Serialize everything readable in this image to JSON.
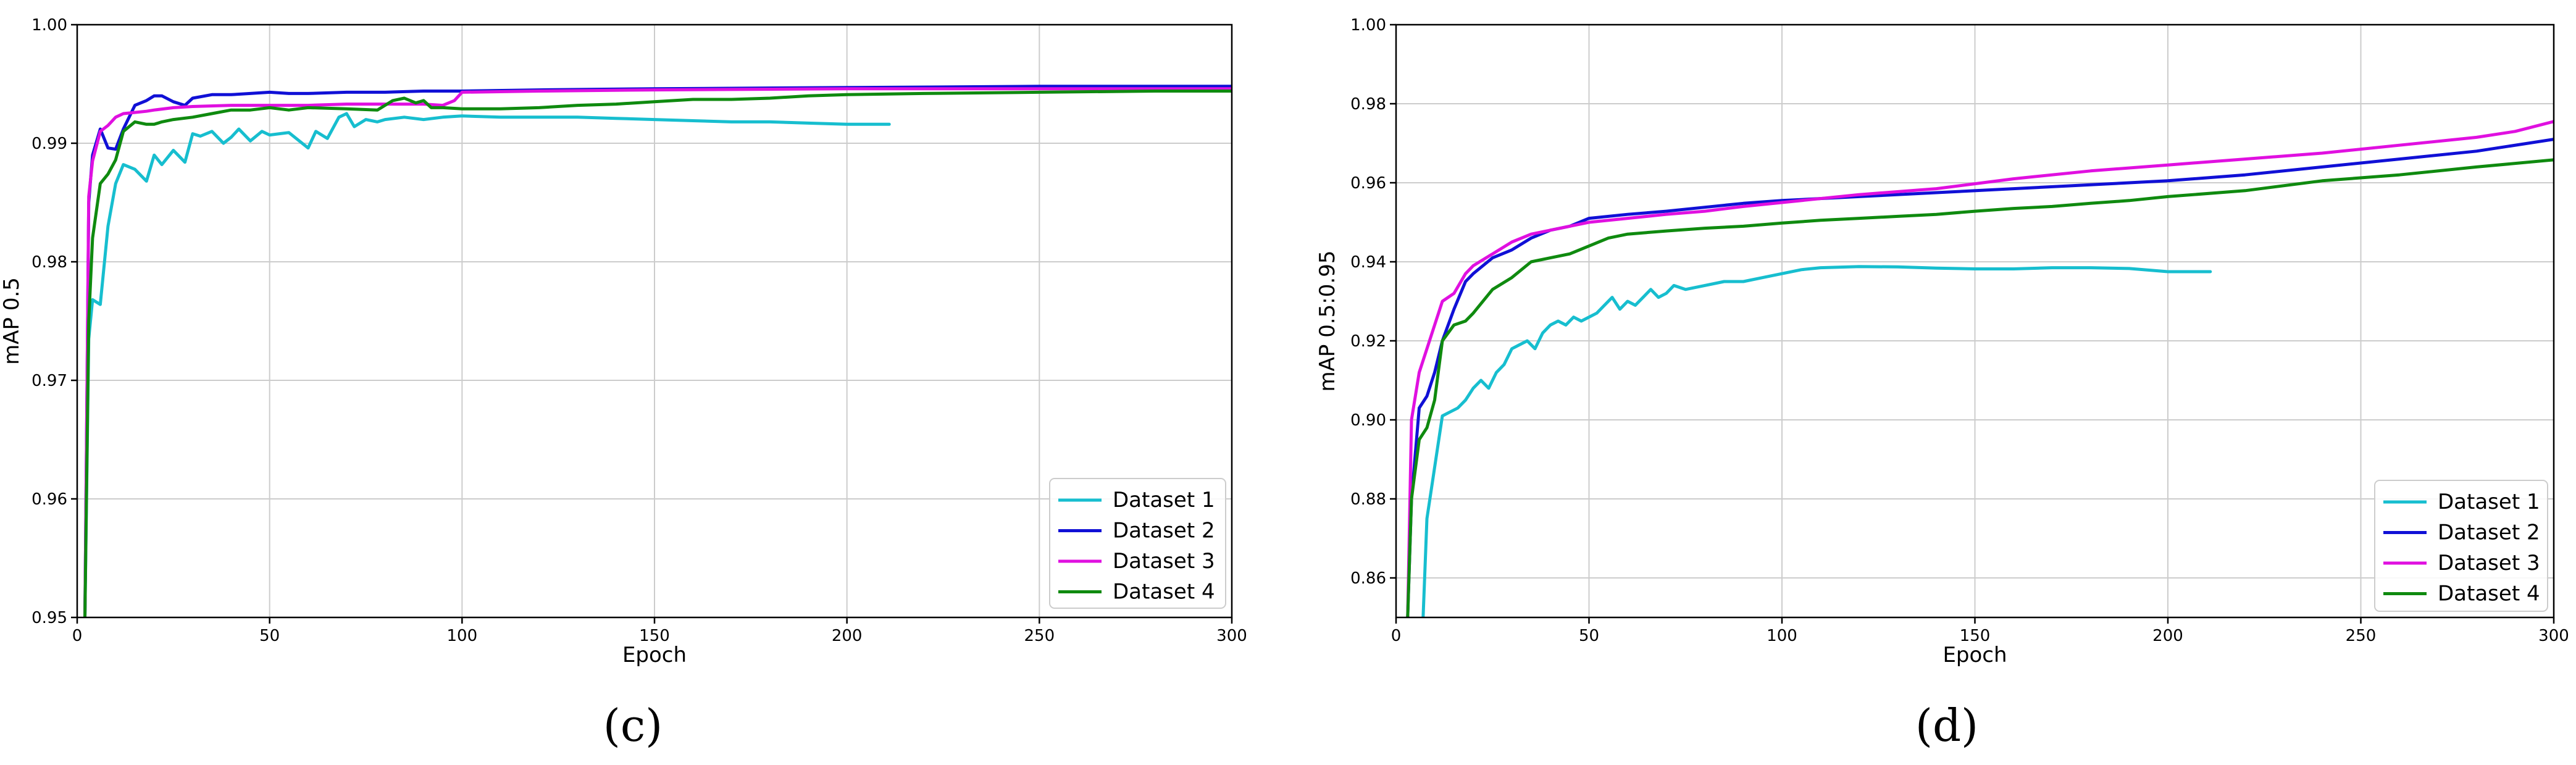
{
  "colors": {
    "dataset1": "#17becf",
    "dataset2": "#1010d6",
    "dataset3": "#e010e0",
    "dataset4": "#0f8a0f",
    "grid": "#cccccc",
    "axis": "#000000"
  },
  "chart_data": [
    {
      "type": "line",
      "panel_label": "(c)",
      "title": "",
      "xlabel": "Epoch",
      "ylabel": "mAP 0.5",
      "xlim": [
        0,
        300
      ],
      "ylim": [
        0.95,
        1.0
      ],
      "xticks": [
        0,
        50,
        100,
        150,
        200,
        250,
        300
      ],
      "yticks": [
        0.95,
        0.96,
        0.97,
        0.98,
        0.99,
        1.0
      ],
      "ytick_labels": [
        "0.95",
        "0.96",
        "0.97",
        "0.98",
        "0.99",
        "1.00"
      ],
      "grid": true,
      "legend_position": "bottom-right",
      "series": [
        {
          "name": "Dataset 1",
          "color_key": "dataset1",
          "x": [
            2,
            3,
            4,
            6,
            8,
            10,
            12,
            15,
            18,
            20,
            22,
            25,
            28,
            30,
            32,
            35,
            38,
            40,
            42,
            45,
            48,
            50,
            55,
            60,
            62,
            65,
            68,
            70,
            72,
            75,
            78,
            80,
            85,
            90,
            95,
            100,
            110,
            120,
            130,
            140,
            150,
            160,
            170,
            180,
            190,
            200,
            211
          ],
          "y": [
            0.95,
            0.9735,
            0.9768,
            0.9764,
            0.983,
            0.9866,
            0.9882,
            0.9878,
            0.9868,
            0.989,
            0.9882,
            0.9894,
            0.9884,
            0.9908,
            0.9906,
            0.991,
            0.99,
            0.9905,
            0.9912,
            0.9902,
            0.991,
            0.9907,
            0.9909,
            0.9896,
            0.991,
            0.9904,
            0.9922,
            0.9925,
            0.9914,
            0.992,
            0.9918,
            0.992,
            0.9922,
            0.992,
            0.9922,
            0.9923,
            0.9922,
            0.9922,
            0.9922,
            0.9921,
            0.992,
            0.9919,
            0.9918,
            0.9918,
            0.9917,
            0.9916,
            0.9916
          ]
        },
        {
          "name": "Dataset 2",
          "color_key": "dataset2",
          "x": [
            2,
            3,
            4,
            6,
            8,
            10,
            12,
            15,
            18,
            20,
            22,
            25,
            28,
            30,
            35,
            40,
            45,
            50,
            55,
            60,
            70,
            80,
            90,
            100,
            120,
            150,
            200,
            250,
            300
          ],
          "y": [
            0.95,
            0.985,
            0.989,
            0.9912,
            0.9896,
            0.9895,
            0.9912,
            0.9932,
            0.9936,
            0.994,
            0.994,
            0.9935,
            0.9932,
            0.9938,
            0.9941,
            0.9941,
            0.9942,
            0.9943,
            0.9942,
            0.9942,
            0.9943,
            0.9943,
            0.9944,
            0.9944,
            0.9945,
            0.9946,
            0.9947,
            0.9948,
            0.9948
          ]
        },
        {
          "name": "Dataset 3",
          "color_key": "dataset3",
          "x": [
            2,
            3,
            4,
            6,
            8,
            10,
            12,
            15,
            18,
            20,
            25,
            30,
            40,
            50,
            60,
            70,
            80,
            90,
            95,
            98,
            100,
            120,
            150,
            200,
            250,
            300
          ],
          "y": [
            0.95,
            0.9855,
            0.9885,
            0.991,
            0.9915,
            0.9922,
            0.9925,
            0.9926,
            0.9927,
            0.9928,
            0.993,
            0.9931,
            0.9932,
            0.9932,
            0.9932,
            0.9933,
            0.9933,
            0.9933,
            0.9932,
            0.9936,
            0.9943,
            0.9944,
            0.9945,
            0.9946,
            0.9946,
            0.9946
          ]
        },
        {
          "name": "Dataset 4",
          "color_key": "dataset4",
          "x": [
            2,
            3,
            4,
            6,
            8,
            10,
            12,
            15,
            18,
            20,
            22,
            25,
            30,
            35,
            40,
            45,
            50,
            55,
            60,
            70,
            78,
            82,
            85,
            88,
            90,
            92,
            95,
            100,
            110,
            120,
            130,
            140,
            150,
            160,
            170,
            180,
            190,
            200,
            220,
            250,
            280,
            300
          ],
          "y": [
            0.95,
            0.975,
            0.982,
            0.9866,
            0.9874,
            0.9886,
            0.991,
            0.9918,
            0.9916,
            0.9916,
            0.9918,
            0.992,
            0.9922,
            0.9925,
            0.9928,
            0.9928,
            0.993,
            0.9928,
            0.993,
            0.9929,
            0.9928,
            0.9936,
            0.9938,
            0.9934,
            0.9936,
            0.993,
            0.993,
            0.9929,
            0.9929,
            0.993,
            0.9932,
            0.9933,
            0.9935,
            0.9937,
            0.9937,
            0.9938,
            0.994,
            0.9941,
            0.9942,
            0.9943,
            0.9944,
            0.9944
          ]
        }
      ]
    },
    {
      "type": "line",
      "panel_label": "(d)",
      "title": "",
      "xlabel": "Epoch",
      "ylabel": "mAP 0.5:0.95",
      "xlim": [
        0,
        300
      ],
      "ylim": [
        0.85,
        1.0
      ],
      "xticks": [
        0,
        50,
        100,
        150,
        200,
        250,
        300
      ],
      "yticks": [
        0.86,
        0.88,
        0.9,
        0.92,
        0.94,
        0.96,
        0.98,
        1.0
      ],
      "ytick_labels": [
        "0.86",
        "0.88",
        "0.90",
        "0.92",
        "0.94",
        "0.96",
        "0.98",
        "1.00"
      ],
      "grid": true,
      "legend_position": "bottom-right",
      "series": [
        {
          "name": "Dataset 1",
          "color_key": "dataset1",
          "x": [
            7,
            8,
            10,
            12,
            14,
            16,
            18,
            20,
            22,
            24,
            26,
            28,
            30,
            32,
            34,
            36,
            38,
            40,
            42,
            44,
            46,
            48,
            50,
            52,
            54,
            56,
            58,
            60,
            62,
            64,
            66,
            68,
            70,
            72,
            75,
            80,
            85,
            90,
            95,
            100,
            105,
            110,
            120,
            130,
            140,
            150,
            160,
            170,
            180,
            190,
            200,
            211
          ],
          "y": [
            0.85,
            0.875,
            0.888,
            0.901,
            0.902,
            0.903,
            0.905,
            0.908,
            0.91,
            0.908,
            0.912,
            0.914,
            0.918,
            0.919,
            0.92,
            0.918,
            0.922,
            0.924,
            0.925,
            0.924,
            0.926,
            0.925,
            0.926,
            0.927,
            0.929,
            0.931,
            0.928,
            0.93,
            0.929,
            0.931,
            0.933,
            0.931,
            0.932,
            0.934,
            0.933,
            0.934,
            0.935,
            0.935,
            0.936,
            0.937,
            0.938,
            0.9385,
            0.9388,
            0.9387,
            0.9384,
            0.9382,
            0.9382,
            0.9385,
            0.9385,
            0.9383,
            0.9375,
            0.9375
          ]
        },
        {
          "name": "Dataset 2",
          "color_key": "dataset2",
          "x": [
            3,
            4,
            6,
            8,
            10,
            12,
            15,
            18,
            20,
            25,
            30,
            35,
            40,
            45,
            50,
            60,
            70,
            80,
            90,
            100,
            120,
            140,
            160,
            180,
            200,
            220,
            240,
            260,
            280,
            300
          ],
          "y": [
            0.85,
            0.88,
            0.903,
            0.906,
            0.912,
            0.92,
            0.928,
            0.935,
            0.937,
            0.941,
            0.943,
            0.946,
            0.948,
            0.949,
            0.951,
            0.952,
            0.9528,
            0.9538,
            0.9548,
            0.9555,
            0.9565,
            0.9575,
            0.9585,
            0.9595,
            0.9605,
            0.962,
            0.964,
            0.966,
            0.968,
            0.971
          ]
        },
        {
          "name": "Dataset 3",
          "color_key": "dataset3",
          "x": [
            3,
            4,
            6,
            8,
            10,
            12,
            15,
            18,
            20,
            25,
            30,
            35,
            40,
            45,
            50,
            60,
            70,
            80,
            90,
            100,
            120,
            140,
            160,
            180,
            200,
            220,
            240,
            260,
            280,
            290,
            300
          ],
          "y": [
            0.85,
            0.9,
            0.912,
            0.918,
            0.924,
            0.93,
            0.932,
            0.937,
            0.939,
            0.942,
            0.945,
            0.947,
            0.948,
            0.949,
            0.95,
            0.951,
            0.952,
            0.9528,
            0.954,
            0.955,
            0.957,
            0.9585,
            0.961,
            0.963,
            0.9645,
            0.966,
            0.9675,
            0.9695,
            0.9715,
            0.973,
            0.9755
          ]
        },
        {
          "name": "Dataset 4",
          "color_key": "dataset4",
          "x": [
            3,
            4,
            6,
            8,
            10,
            12,
            15,
            18,
            20,
            25,
            30,
            35,
            40,
            45,
            50,
            55,
            60,
            70,
            80,
            90,
            100,
            110,
            120,
            130,
            140,
            150,
            160,
            170,
            180,
            190,
            200,
            220,
            240,
            260,
            280,
            300
          ],
          "y": [
            0.85,
            0.88,
            0.895,
            0.898,
            0.905,
            0.92,
            0.924,
            0.925,
            0.927,
            0.933,
            0.936,
            0.94,
            0.941,
            0.942,
            0.944,
            0.946,
            0.947,
            0.9478,
            0.9485,
            0.949,
            0.9498,
            0.9505,
            0.951,
            0.9515,
            0.952,
            0.9528,
            0.9535,
            0.954,
            0.9548,
            0.9555,
            0.9565,
            0.958,
            0.9605,
            0.962,
            0.964,
            0.9658
          ]
        }
      ]
    }
  ]
}
